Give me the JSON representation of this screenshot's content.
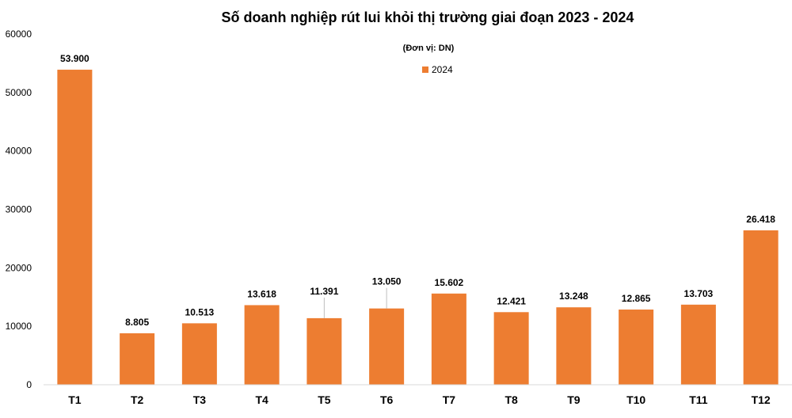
{
  "chart_data": {
    "type": "bar",
    "title": "Số doanh nghiệp rút lui khỏi thị trường giai đoạn 2023 - 2024",
    "subtitle": "(Đơn vị: DN)",
    "categories": [
      "T1",
      "T2",
      "T3",
      "T4",
      "T5",
      "T6",
      "T7",
      "T8",
      "T9",
      "T10",
      "T11",
      "T12"
    ],
    "series": [
      {
        "name": "2024",
        "color": "#ED7D31",
        "values": [
          53900,
          8805,
          10513,
          13618,
          11391,
          13050,
          15602,
          12421,
          13248,
          12865,
          13703,
          26418
        ],
        "labels": [
          "53.900",
          "8.805",
          "10.513",
          "13.618",
          "11.391",
          "13.050",
          "15.602",
          "12.421",
          "13.248",
          "12.865",
          "13.703",
          "26.418"
        ]
      }
    ],
    "ylim": [
      0,
      60000
    ],
    "yticks": [
      "0",
      "10000",
      "20000",
      "30000",
      "40000",
      "50000",
      "60000"
    ],
    "grid": false,
    "legend": "top-center"
  }
}
